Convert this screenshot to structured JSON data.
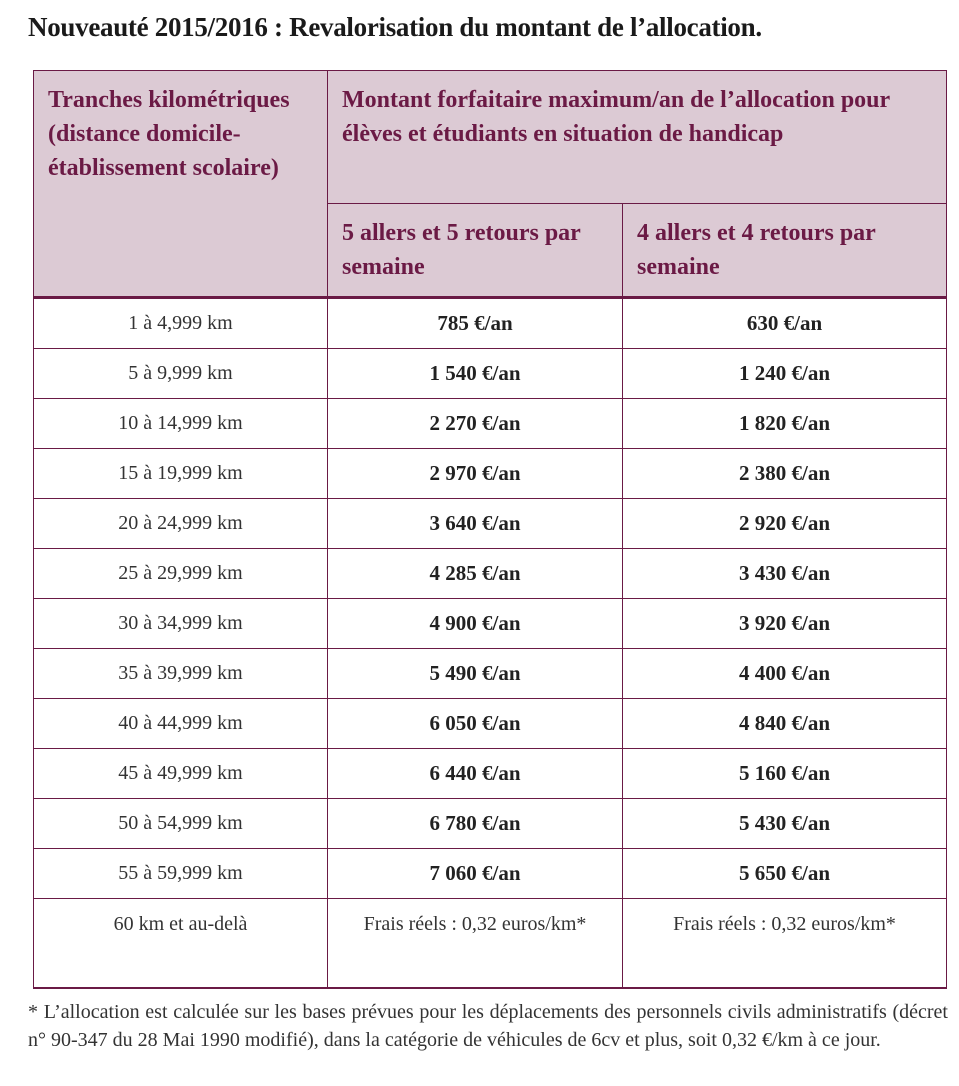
{
  "title": "Nouveauté 2015/2016 : Revalorisation du montant de l’allocation.",
  "table": {
    "header_col1": "Tranches kilométriques (distance domicile-établissement scolaire)",
    "header_group": "Montant forfaitaire maximum/an de l’allocation pour élèves et étudiants en situation de handicap",
    "header_col2": "5 allers et 5 retours par semaine",
    "header_col3": "4 allers et 4 retours par semaine",
    "rows": [
      {
        "range": "1 à 4,999 km",
        "five": "785 €/an",
        "four": "630 €/an"
      },
      {
        "range": "5 à 9,999 km",
        "five": "1 540 €/an",
        "four": "1 240 €/an"
      },
      {
        "range": "10 à 14,999 km",
        "five": "2 270 €/an",
        "four": "1 820 €/an"
      },
      {
        "range": "15 à 19,999 km",
        "five": "2 970 €/an",
        "four": "2 380 €/an"
      },
      {
        "range": "20 à 24,999 km",
        "five": "3 640 €/an",
        "four": "2 920 €/an"
      },
      {
        "range": "25 à 29,999 km",
        "five": "4 285 €/an",
        "four": "3 430 €/an"
      },
      {
        "range": "30 à 34,999 km",
        "five": "4 900 €/an",
        "four": "3 920 €/an"
      },
      {
        "range": "35 à 39,999 km",
        "five": "5 490 €/an",
        "four": "4 400 €/an"
      },
      {
        "range": "40 à 44,999 km",
        "five": "6 050 €/an",
        "four": "4 840 €/an"
      },
      {
        "range": "45 à 49,999 km",
        "five": "6 440 €/an",
        "four": "5 160 €/an"
      },
      {
        "range": "50 à 54,999 km",
        "five": "6 780 €/an",
        "four": "5 430 €/an"
      },
      {
        "range": "55 à 59,999 km",
        "five": "7 060 €/an",
        "four": "5 650 €/an"
      },
      {
        "range": "60 km et au-delà",
        "five": "Frais réels : 0,32 euros/km*",
        "four": "Frais réels : 0,32 euros/km*"
      }
    ]
  },
  "footnote": "* L’allocation est calculée sur les bases prévues pour les déplacements des personnels civils administratifs (décret n° 90-347 du 28 Mai 1990 modifié), dans la catégorie de véhicules de 6cv et plus, soit 0,32 €/km à ce jour.",
  "colors": {
    "header_bg": "#dccad4",
    "header_text": "#6b1a45",
    "border": "#6a1a45"
  }
}
